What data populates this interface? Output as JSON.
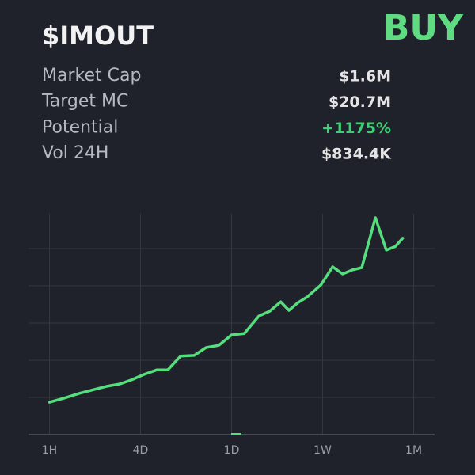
{
  "header": {
    "title": "$IMOUT",
    "action": "BUY"
  },
  "stats": [
    {
      "label": "Market Cap",
      "value": "$1.6M"
    },
    {
      "label": "Target MC",
      "value": "$20.7M"
    },
    {
      "label": "Potential",
      "value": "+1175%",
      "color": "#3ecf74"
    },
    {
      "label": "Vol 24H",
      "value": "$834.4K"
    }
  ],
  "chart_data": {
    "type": "line",
    "x": [
      0,
      0.16,
      0.33,
      0.49,
      0.63,
      0.77,
      0.9,
      1.04,
      1.18,
      1.3,
      1.44,
      1.59,
      1.72,
      1.86,
      2.0,
      2.14,
      2.3,
      2.42,
      2.54,
      2.63,
      2.73,
      2.83,
      2.98,
      3.11,
      3.22,
      3.33,
      3.43,
      3.58,
      3.7,
      3.8,
      3.88
    ],
    "values": [
      0.87,
      0.98,
      1.11,
      1.21,
      1.3,
      1.36,
      1.47,
      1.62,
      1.74,
      1.74,
      2.11,
      2.13,
      2.34,
      2.4,
      2.68,
      2.72,
      3.19,
      3.32,
      3.57,
      3.34,
      3.55,
      3.7,
      4.02,
      4.51,
      4.32,
      4.43,
      4.49,
      5.83,
      4.96,
      5.06,
      5.28
    ],
    "color": "#55dd7e",
    "xlim": [
      -0.23,
      4.23
    ],
    "xticks": [
      {
        "value": 0,
        "label": "1H"
      },
      {
        "value": 1,
        "label": "4D"
      },
      {
        "value": 2,
        "label": "1D"
      },
      {
        "value": 3,
        "label": "1W"
      },
      {
        "value": 4,
        "label": "1M"
      }
    ],
    "ylim": [
      0,
      6
    ],
    "yticks": [
      1,
      2,
      3,
      4,
      5
    ],
    "grid": true
  }
}
